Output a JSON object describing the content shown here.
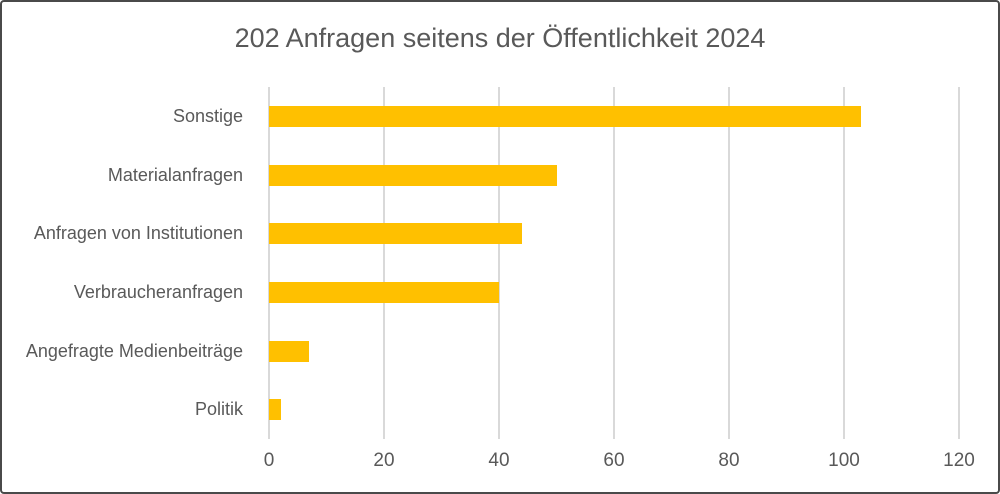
{
  "chart": {
    "title": "202 Anfragen seitens der Öffentlichkeit 2024"
  },
  "chart_data": {
    "type": "bar",
    "orientation": "horizontal",
    "title": "202 Anfragen seitens der Öffentlichkeit 2024",
    "categories": [
      "Sonstige",
      "Materialanfragen",
      "Anfragen von Institutionen",
      "Verbraucheranfragen",
      "Angefragte Medienbeiträge",
      "Politik"
    ],
    "values": [
      103,
      50,
      44,
      40,
      7,
      2
    ],
    "xlabel": "",
    "ylabel": "",
    "xlim": [
      0,
      120
    ],
    "xticks": [
      "0",
      "20",
      "40",
      "60",
      "80",
      "100",
      "120"
    ],
    "grid": "vertical-only",
    "legend": "none",
    "colors": {
      "bar": "#ffc000",
      "gridline": "#d9d9d9",
      "text": "#595959",
      "frame_border": "#4a4a4a",
      "background": "#ffffff"
    }
  }
}
